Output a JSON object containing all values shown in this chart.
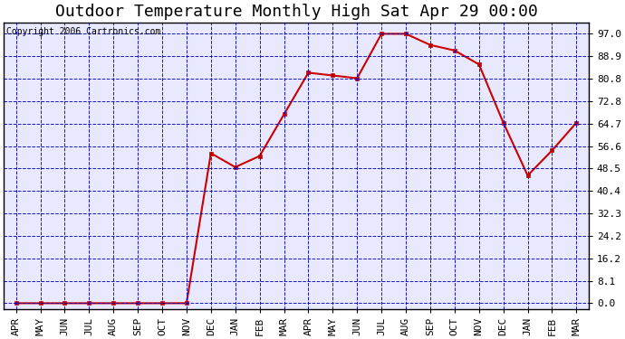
{
  "title": "Outdoor Temperature Monthly High Sat Apr 29 00:00",
  "copyright_text": "Copyright 2006 Cartronics.com",
  "x_labels": [
    "APR",
    "MAY",
    "JUN",
    "JUL",
    "AUG",
    "SEP",
    "OCT",
    "NOV",
    "DEC",
    "JAN",
    "FEB",
    "MAR",
    "APR",
    "MAY",
    "JUN",
    "JUL",
    "AUG",
    "SEP",
    "OCT",
    "NOV",
    "DEC",
    "JAN",
    "FEB",
    "MAR"
  ],
  "y_values": [
    0.0,
    0.0,
    0.0,
    0.0,
    0.0,
    0.0,
    0.0,
    0.0,
    54.0,
    49.0,
    53.0,
    68.0,
    83.0,
    82.0,
    81.0,
    97.0,
    97.0,
    93.0,
    91.0,
    86.0,
    65.0,
    46.0,
    55.0,
    65.0
  ],
  "y_ticks": [
    0.0,
    8.1,
    16.2,
    24.2,
    32.3,
    40.4,
    48.5,
    56.6,
    64.7,
    72.8,
    80.8,
    88.9,
    97.0
  ],
  "line_color": "#cc0000",
  "marker_color": "#cc0000",
  "grid_color": "#0000bb",
  "background_color": "#e8e8ff",
  "title_fontsize": 13,
  "axis_fontsize": 8,
  "copyright_fontsize": 7
}
